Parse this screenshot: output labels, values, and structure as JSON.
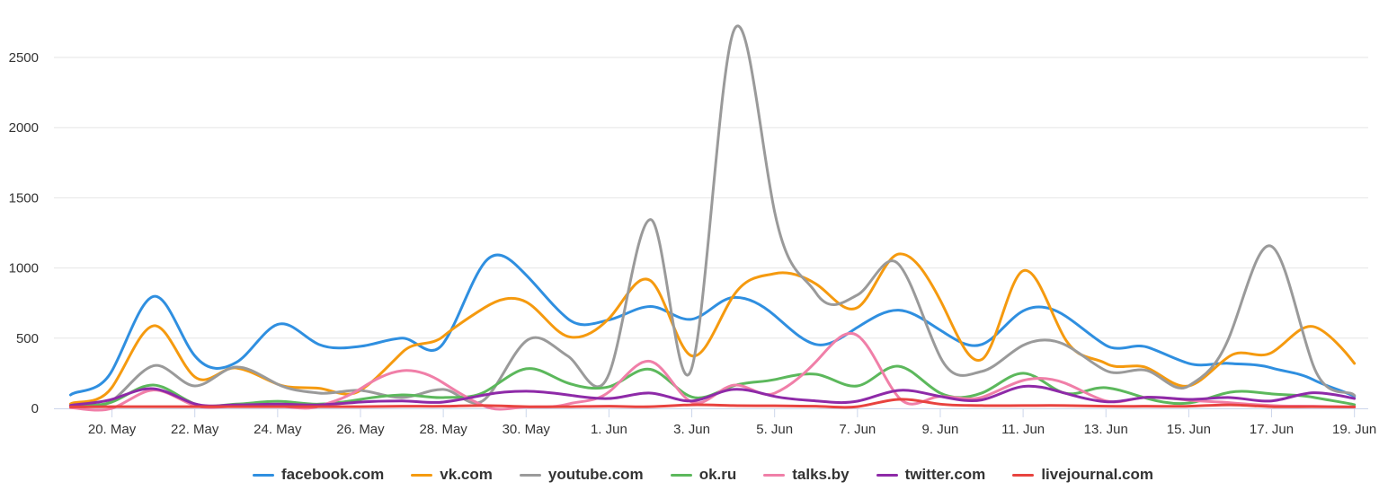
{
  "chart_data": {
    "type": "line",
    "title": "",
    "xlabel": "",
    "ylabel": "",
    "ylim": [
      0,
      2750
    ],
    "yticks": [
      "0",
      "500",
      "1000",
      "1500",
      "2000",
      "2500"
    ],
    "ytick_values": [
      0,
      500,
      1000,
      1500,
      2000,
      2500
    ],
    "grid": true,
    "legend_placement": "bottom-center",
    "x": [
      "19 May",
      "20 May",
      "21 May",
      "22 May",
      "23 May",
      "24 May",
      "25 May",
      "26 May",
      "27 May",
      "28 May",
      "29 May",
      "30 May",
      "31 May",
      "1 Jun",
      "2 Jun",
      "3 Jun",
      "4 Jun",
      "5 Jun",
      "6 Jun",
      "7 Jun",
      "8 Jun",
      "9 Jun",
      "10 Jun",
      "11 Jun",
      "12 Jun",
      "13 Jun",
      "14 Jun",
      "15 Jun",
      "16 Jun",
      "17 Jun",
      "18 Jun",
      "19 Jun"
    ],
    "xtick_labels": [
      {
        "day": 1,
        "label": "20. May"
      },
      {
        "day": 3,
        "label": "22. May"
      },
      {
        "day": 5,
        "label": "24. May"
      },
      {
        "day": 7,
        "label": "26. May"
      },
      {
        "day": 9,
        "label": "28. May"
      },
      {
        "day": 11,
        "label": "30. May"
      },
      {
        "day": 13,
        "label": "1. Jun"
      },
      {
        "day": 15,
        "label": "3. Jun"
      },
      {
        "day": 17,
        "label": "5. Jun"
      },
      {
        "day": 19,
        "label": "7. Jun"
      },
      {
        "day": 21,
        "label": "9. Jun"
      },
      {
        "day": 23,
        "label": "11. Jun"
      },
      {
        "day": 25,
        "label": "13. Jun"
      },
      {
        "day": 27,
        "label": "15. Jun"
      },
      {
        "day": 29,
        "label": "17. Jun"
      },
      {
        "day": 31,
        "label": "19. Jun"
      }
    ],
    "series": [
      {
        "name": "facebook.com",
        "color": "#2f8fe0",
        "values": [
          96,
          268,
          797,
          374,
          327,
          598,
          455,
          442,
          500,
          463,
          1040,
          950,
          640,
          630,
          726,
          635,
          790,
          662,
          455,
          577,
          699,
          557,
          455,
          694,
          662,
          449,
          436,
          320,
          320,
          288,
          205,
          85
        ]
      },
      {
        "name": "vk.com",
        "color": "#f59a0f",
        "values": [
          32,
          150,
          588,
          224,
          288,
          172,
          143,
          128,
          397,
          513,
          718,
          758,
          513,
          640,
          910,
          374,
          800,
          960,
          886,
          718,
          1100,
          770,
          348,
          980,
          502,
          320,
          288,
          160,
          374,
          397,
          583,
          320
        ]
      },
      {
        "name": "youtube.com",
        "color": "#9a9a9a",
        "values": [
          20,
          53,
          303,
          160,
          294,
          172,
          109,
          128,
          77,
          135,
          64,
          480,
          374,
          245,
          1345,
          288,
          2680,
          1400,
          822,
          808,
          1025,
          365,
          263,
          449,
          455,
          269,
          269,
          160,
          525,
          1154,
          310,
          92
        ]
      },
      {
        "name": "ok.ru",
        "color": "#5cb85c",
        "values": [
          20,
          45,
          166,
          32,
          30,
          50,
          30,
          64,
          96,
          77,
          117,
          282,
          181,
          154,
          278,
          81,
          160,
          205,
          243,
          160,
          300,
          109,
          109,
          250,
          109,
          147,
          70,
          38,
          115,
          103,
          79,
          26
        ]
      },
      {
        "name": "talks.by",
        "color": "#f07fa8",
        "values": [
          5,
          0,
          130,
          20,
          15,
          15,
          15,
          140,
          268,
          181,
          15,
          10,
          30,
          117,
          335,
          45,
          165,
          108,
          333,
          519,
          77,
          85,
          79,
          199,
          181,
          53,
          79,
          58,
          40,
          20,
          15,
          10
        ]
      },
      {
        "name": "twitter.com",
        "color": "#8e2aa8",
        "values": [
          21,
          64,
          140,
          32,
          25,
          30,
          25,
          45,
          53,
          45,
          96,
          122,
          96,
          70,
          109,
          53,
          135,
          85,
          53,
          51,
          128,
          85,
          60,
          156,
          109,
          47,
          79,
          64,
          77,
          53,
          111,
          70
        ]
      },
      {
        "name": "livejournal.com",
        "color": "#e8433f",
        "values": [
          10,
          12,
          12,
          12,
          12,
          12,
          12,
          12,
          15,
          15,
          20,
          12,
          12,
          15,
          12,
          25,
          20,
          18,
          15,
          12,
          64,
          30,
          20,
          20,
          20,
          15,
          15,
          15,
          25,
          12,
          12,
          10
        ]
      }
    ]
  }
}
